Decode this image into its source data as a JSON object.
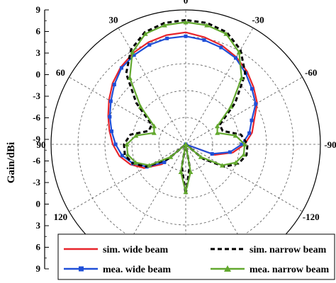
{
  "chart_data": {
    "type": "polar-line",
    "ylabel": "Gain/dBi",
    "radial_tick_labels": [
      "9",
      "6",
      "3",
      "0",
      "-3",
      "-6",
      "-9",
      "-6",
      "-3",
      "0",
      "3",
      "6",
      "9"
    ],
    "angle_labels": [
      {
        "angle": 0,
        "label": "0"
      },
      {
        "angle": -30,
        "label": "-30"
      },
      {
        "angle": -60,
        "label": "-60"
      },
      {
        "angle": -90,
        "label": "-90"
      },
      {
        "angle": -120,
        "label": "-120"
      },
      {
        "angle": 120,
        "label": "120"
      },
      {
        "angle": 90,
        "label": "90"
      },
      {
        "angle": 60,
        "label": "60"
      },
      {
        "angle": 30,
        "label": "30"
      }
    ],
    "r_range": [
      -15,
      9
    ],
    "grid": true,
    "legend_position": "bottom",
    "legend": [
      {
        "id": "sim_wide",
        "label": "sim. wide beam",
        "color": "#e8242b",
        "style": "solid"
      },
      {
        "id": "sim_narrow",
        "label": "sim. narrow beam",
        "color": "#000000",
        "style": "dashed"
      },
      {
        "id": "mea_wide",
        "label": "mea. wide beam",
        "color": "#1f4fd8",
        "style": "solid-square"
      },
      {
        "id": "mea_narrow",
        "label": "mea. narrow beam",
        "color": "#62a82e",
        "style": "solid-triangle"
      }
    ],
    "series": [
      {
        "id": "sim_wide",
        "angles": [
          0,
          10,
          20,
          30,
          40,
          50,
          60,
          70,
          80,
          90,
          100,
          110,
          120,
          130,
          140,
          150,
          160,
          170,
          180,
          190,
          200,
          210,
          220,
          230,
          240,
          250,
          260,
          270,
          280,
          290,
          300,
          310,
          320,
          330,
          340,
          350
        ],
        "values": [
          5,
          4.8,
          4.4,
          3.8,
          3.0,
          2.0,
          0.8,
          -0.3,
          -1.2,
          -2.0,
          -3.0,
          -4.5,
          -6.5,
          -9.5,
          -15,
          -15,
          -15,
          -15,
          -15,
          -15,
          -15,
          -15,
          -15,
          -15,
          -15,
          -9.5,
          -6.5,
          -4.5,
          -3.0,
          -2.0,
          -0.3,
          0.8,
          2.0,
          3.0,
          3.8,
          4.4
        ]
      },
      {
        "id": "sim_narrow",
        "angles": [
          0,
          10,
          20,
          30,
          40,
          50,
          60,
          70,
          80,
          90,
          100,
          110,
          120,
          130,
          140,
          150,
          160,
          170,
          180,
          190,
          200,
          210,
          220,
          230,
          240,
          250,
          260,
          270,
          280,
          290,
          300,
          310,
          320,
          330,
          340,
          350
        ],
        "values": [
          7.2,
          7.0,
          6.3,
          4.5,
          1.5,
          -3.5,
          -8,
          -8,
          -5,
          -4,
          -4,
          -5,
          -7,
          -11,
          -15,
          -15,
          -15,
          -11,
          -6,
          -11,
          -15,
          -15,
          -15,
          -11,
          -7,
          -5,
          -4,
          -4,
          -5,
          -8,
          -8,
          -3.5,
          1.5,
          4.5,
          6.3,
          7.0
        ]
      },
      {
        "id": "mea_wide",
        "angles": [
          0,
          10,
          20,
          30,
          40,
          50,
          60,
          70,
          80,
          90,
          100,
          110,
          120,
          130,
          140,
          150,
          160,
          170,
          180,
          190,
          200,
          210,
          220,
          230,
          240,
          250,
          260,
          270,
          280,
          290,
          300,
          310,
          320,
          330,
          340,
          350
        ],
        "values": [
          4.3,
          4.2,
          3.9,
          3.4,
          2.8,
          1.6,
          0.4,
          -0.6,
          -1.6,
          -2.5,
          -3.5,
          -5.0,
          -7.0,
          -10,
          -15,
          -15,
          -15,
          -15,
          -15,
          -15,
          -15,
          -15,
          -15,
          -15,
          -15,
          -10,
          -7.0,
          -5.0,
          -3.5,
          -2.5,
          -0.6,
          0.4,
          1.6,
          2.8,
          3.4,
          3.9
        ]
      },
      {
        "id": "mea_narrow",
        "angles": [
          0,
          10,
          20,
          30,
          40,
          50,
          60,
          70,
          80,
          90,
          100,
          110,
          120,
          130,
          140,
          150,
          160,
          170,
          180,
          190,
          200,
          210,
          220,
          230,
          240,
          250,
          260,
          270,
          280,
          290,
          300,
          310,
          320,
          330,
          340,
          350
        ],
        "values": [
          6.8,
          6.6,
          6.0,
          4.0,
          0.5,
          -4.5,
          -8.5,
          -9,
          -6,
          -4.5,
          -4.5,
          -5.5,
          -7.5,
          -11.5,
          -15,
          -15,
          -15,
          -10,
          -6.5,
          -10,
          -15,
          -15,
          -15,
          -11.5,
          -7.5,
          -5.5,
          -4.5,
          -4.5,
          -6,
          -9,
          -8.5,
          -4.5,
          0.5,
          4.0,
          6.0,
          6.6
        ]
      }
    ]
  }
}
